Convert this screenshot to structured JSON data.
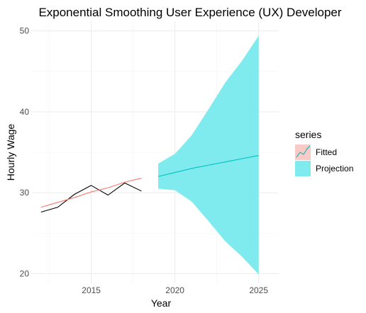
{
  "chart_data": {
    "type": "line",
    "title": "Exponential Smoothing User Experience (UX) Developer",
    "xlabel": "Year",
    "ylabel": "Hourly Wage",
    "xlim": [
      2011.5,
      2026.2
    ],
    "ylim": [
      18.8,
      51.2
    ],
    "x_ticks": [
      2015,
      2020,
      2025
    ],
    "y_ticks": [
      20,
      30,
      40,
      50
    ],
    "grid": true,
    "legend": {
      "title": "series",
      "position": "right"
    },
    "observed": {
      "x": [
        2012,
        2013,
        2014,
        2015,
        2016,
        2017,
        2018
      ],
      "values": [
        27.6,
        28.2,
        29.8,
        30.9,
        29.7,
        31.2,
        30.2
      ],
      "color": "#000000"
    },
    "series": [
      {
        "name": "Fitted",
        "x": [
          2012,
          2013,
          2014,
          2015,
          2016,
          2017,
          2018
        ],
        "values": [
          28.2,
          28.8,
          29.4,
          30.1,
          30.6,
          31.3,
          31.8
        ],
        "color": "#F8766D"
      },
      {
        "name": "Projection",
        "x": [
          2019,
          2020,
          2021,
          2022,
          2023,
          2024,
          2025
        ],
        "values": [
          32.0,
          32.5,
          33.0,
          33.4,
          33.8,
          34.2,
          34.6
        ],
        "lower": [
          30.5,
          30.3,
          28.9,
          26.5,
          24.0,
          22.1,
          19.9
        ],
        "upper": [
          33.6,
          34.8,
          37.1,
          40.3,
          43.6,
          46.3,
          49.4
        ],
        "color": "#00BFC4",
        "band_color": "#7FEBEE"
      }
    ]
  }
}
